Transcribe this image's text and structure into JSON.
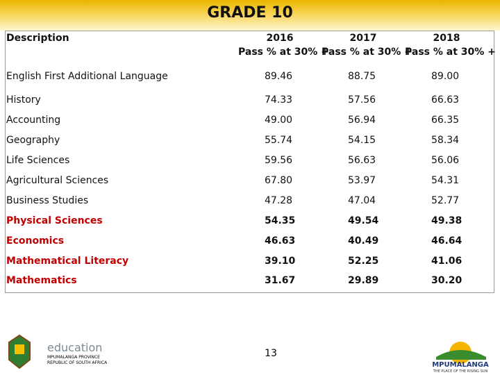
{
  "header": {
    "title": "GRADE 10"
  },
  "table": {
    "columns": [
      {
        "label": "Description"
      },
      {
        "year": "2016",
        "label": "Pass % at 30% +"
      },
      {
        "year": "2017",
        "label": "Pass % at 30% +"
      },
      {
        "year": "2018",
        "label": "Pass % at 30% +"
      }
    ],
    "rows": [
      {
        "label": "English First Additional Language",
        "values": [
          "89.46",
          "88.75",
          "89.00"
        ]
      },
      {
        "label": "History",
        "values": [
          "74.33",
          "57.56",
          "66.63"
        ]
      },
      {
        "label": "Accounting",
        "values": [
          "49.00",
          "56.94",
          "66.35"
        ]
      },
      {
        "label": "Geography",
        "values": [
          "55.74",
          "54.15",
          "58.34"
        ]
      },
      {
        "label": "Life Sciences",
        "values": [
          "59.56",
          "56.63",
          "56.06"
        ]
      },
      {
        "label": "Agricultural Sciences",
        "values": [
          "67.80",
          "53.97",
          "54.31"
        ]
      },
      {
        "label": "Business Studies",
        "values": [
          "47.28",
          "47.04",
          "52.77"
        ]
      },
      {
        "label": "Physical Sciences",
        "values": [
          "54.35",
          "49.54",
          "49.38"
        ],
        "label_color": "#c00000",
        "bold": true
      },
      {
        "label": "Economics",
        "values": [
          "46.63",
          "40.49",
          "46.64"
        ],
        "label_color": "#c00000",
        "bold": true
      },
      {
        "label": "Mathematical Literacy",
        "values": [
          "39.10",
          "52.25",
          "41.06"
        ],
        "label_color": "#c00000",
        "bold": true
      },
      {
        "label": "Mathematics",
        "values": [
          "31.67",
          "29.89",
          "30.20"
        ],
        "label_color": "#c00000",
        "bold": true
      }
    ]
  },
  "footer": {
    "page_number": "13",
    "left_logo": {
      "name": "education",
      "line1": "MPUMALANGA PROVINCE",
      "line2": "REPUBLIC OF SOUTH AFRICA"
    },
    "right_logo": {
      "name": "MPUMALANGA",
      "tagline": "THE PLACE OF THE RISING SUN"
    }
  }
}
